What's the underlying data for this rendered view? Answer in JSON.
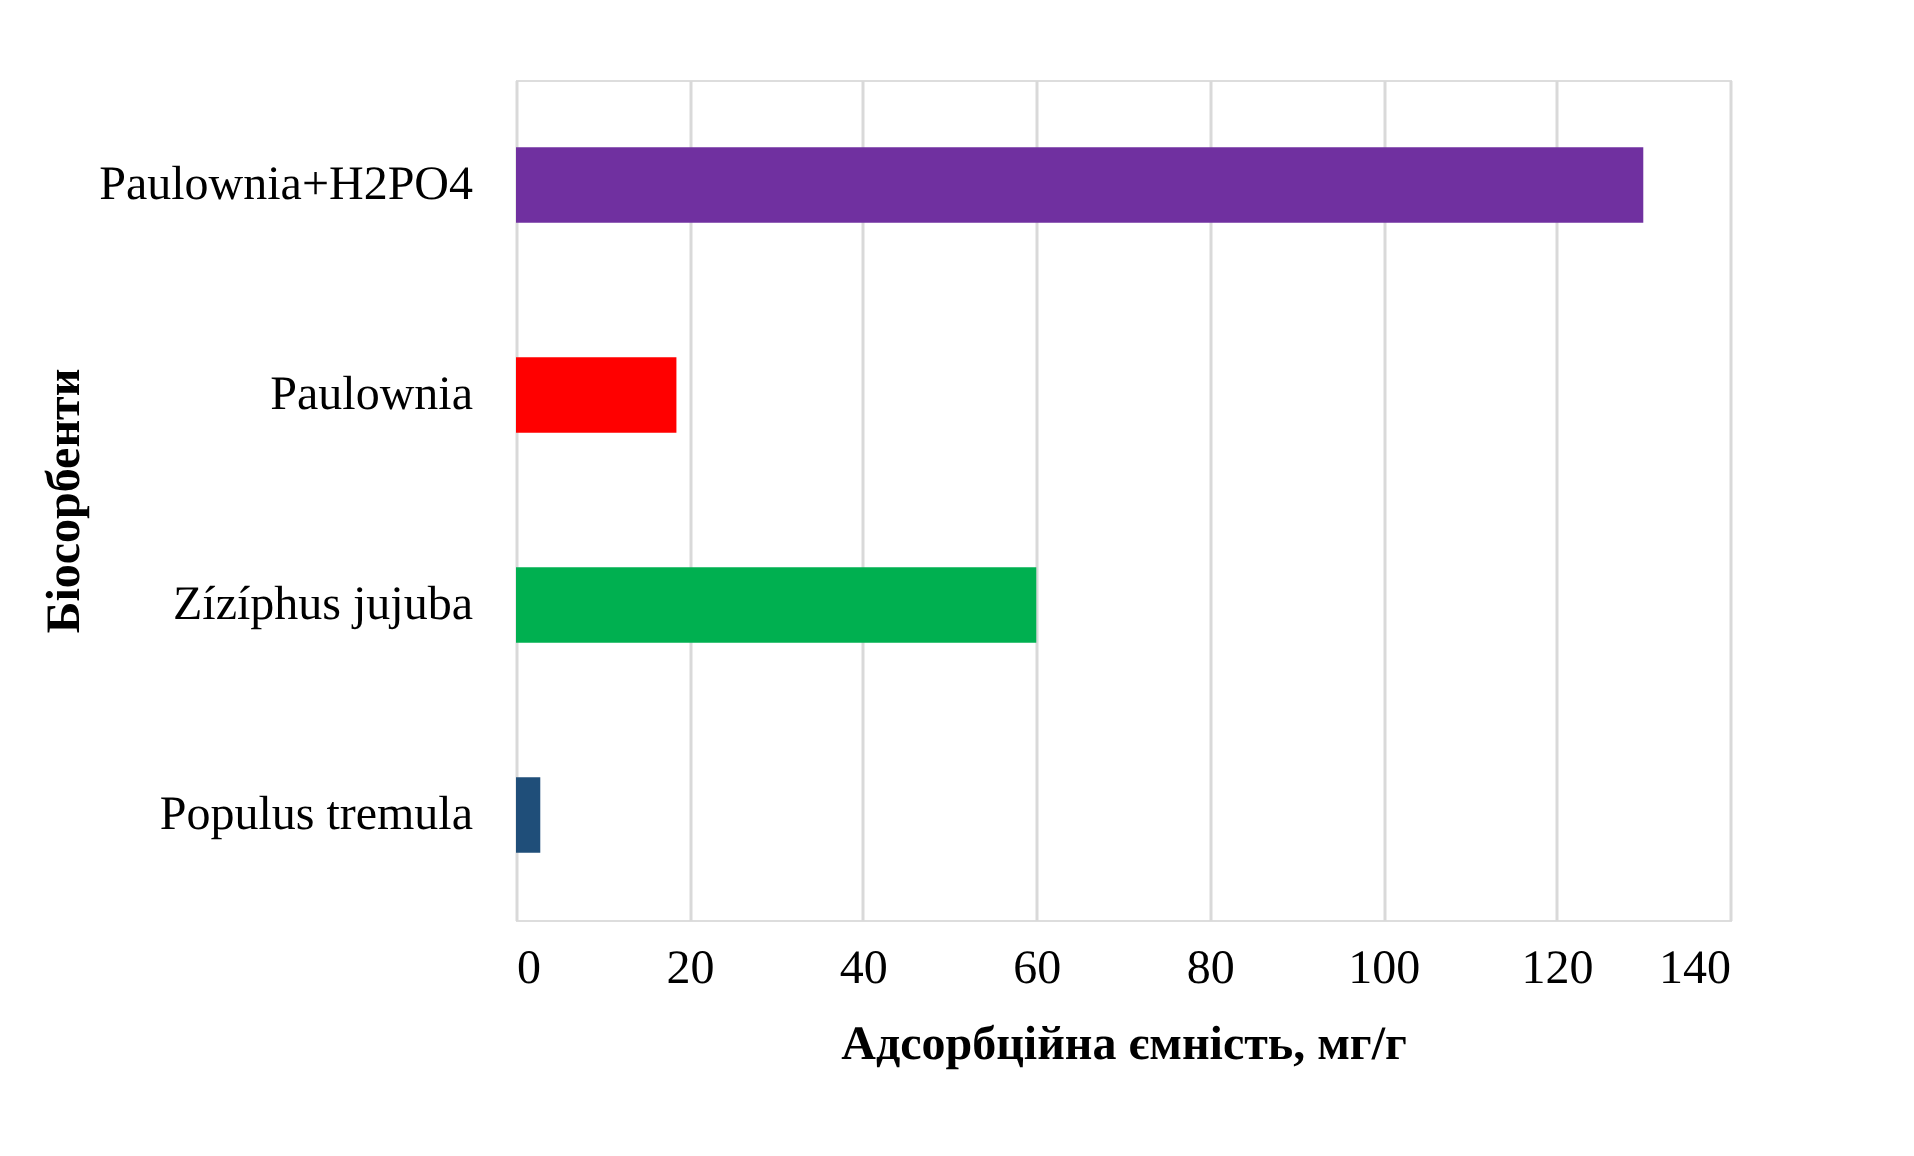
{
  "chart_data": {
    "type": "bar",
    "orientation": "horizontal",
    "categories": [
      "Paulownia+H2PO4",
      "Paulownia",
      "Zízíphus  jujuba",
      "Populus tremula"
    ],
    "values": [
      130,
      18.5,
      60,
      2.8
    ],
    "colors": [
      "#7030a0",
      "#ff0000",
      "#00b050",
      "#1f4e79"
    ],
    "xlabel": "Адсорбційна ємність, мг/г",
    "ylabel": "Біосорбенти",
    "xlim": [
      0,
      140
    ],
    "xticks": [
      0,
      20,
      40,
      60,
      80,
      100,
      120,
      140
    ],
    "grid": "x",
    "legend": false
  }
}
